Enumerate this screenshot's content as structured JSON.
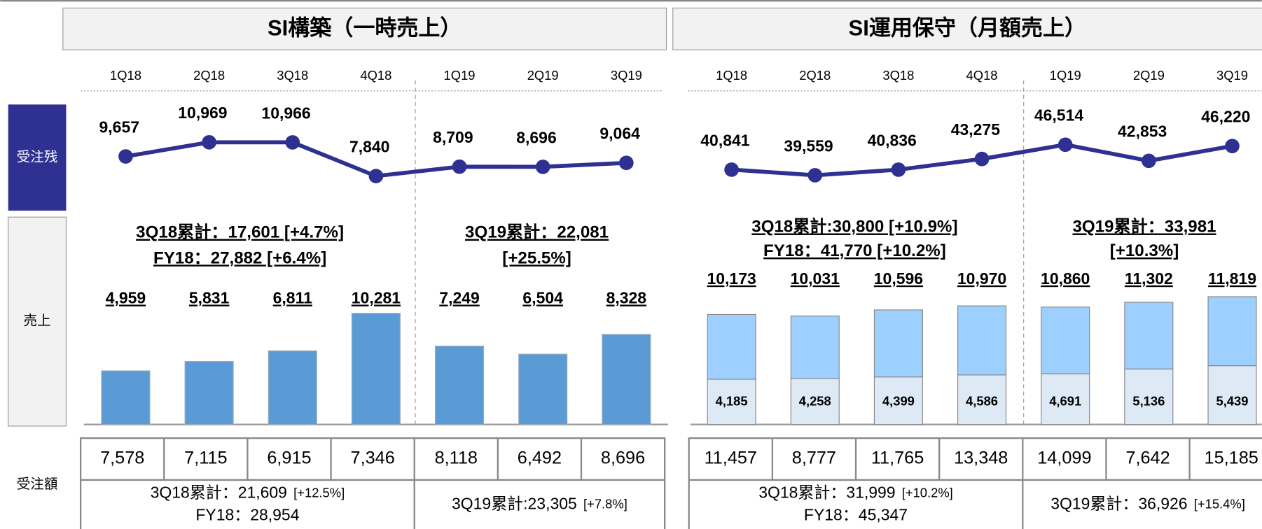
{
  "row_labels": [
    "受注残",
    "売上",
    "受注額"
  ],
  "chart_data": [
    {
      "type": "line",
      "title": "SI構築（一時売上）",
      "categories": [
        "1Q18",
        "2Q18",
        "3Q18",
        "4Q18",
        "1Q19",
        "2Q19",
        "3Q19"
      ],
      "values": [
        9657,
        10969,
        10966,
        7840,
        8709,
        8696,
        9064
      ],
      "value_labels": [
        "9,657",
        "10,969",
        "10,966",
        "7,840",
        "8,709",
        "8,696",
        "9,064"
      ],
      "color": "#2e3192"
    },
    {
      "type": "bar",
      "values": [
        4959,
        5831,
        6811,
        10281,
        7249,
        6504,
        8328
      ],
      "value_labels": [
        "4,959",
        "5,831",
        "6,811",
        "10,281",
        "7,249",
        "6,504",
        "8,328"
      ],
      "color": "#5b9bd5",
      "annotations": [
        [
          "3Q18累計：17,601 [+4.7%]",
          "FY18：27,882 [+6.4%]"
        ],
        [
          "3Q19累計：22,081",
          "[+25.5%]"
        ]
      ]
    },
    {
      "type": "line",
      "title": "SI運用保守（月額売上）",
      "categories": [
        "1Q18",
        "2Q18",
        "3Q18",
        "4Q18",
        "1Q19",
        "2Q19",
        "3Q19"
      ],
      "values": [
        40841,
        39559,
        40836,
        43275,
        46514,
        42853,
        46220
      ],
      "value_labels": [
        "40,841",
        "39,559",
        "40,836",
        "43,275",
        "46,514",
        "42,853",
        "46,220"
      ],
      "color": "#2e3192"
    },
    {
      "type": "stacked",
      "series": [
        {
          "color": "#dde9f5",
          "values": [
            4185,
            4258,
            4399,
            4586,
            4691,
            5136,
            5439
          ],
          "value_labels": [
            "4,185",
            "4,258",
            "4,399",
            "4,586",
            "4,691",
            "5,136",
            "5,439"
          ]
        },
        {
          "color": "#9dcfff",
          "values": [
            5988,
            5773,
            6197,
            6384,
            6169,
            6166,
            6380
          ]
        }
      ],
      "total_labels": [
        "10,173",
        "10,031",
        "10,596",
        "10,970",
        "10,860",
        "11,302",
        "11,819"
      ],
      "annotations": [
        [
          "3Q18累計:30,800 [+10.9%]",
          "FY18：41,770 [+10.2%]"
        ],
        [
          "3Q19累計：33,981",
          "[+10.3%]"
        ]
      ]
    }
  ],
  "tables": [
    {
      "cells": [
        "7,578",
        "7,115",
        "6,915",
        "7,346",
        "8,118",
        "6,492",
        "8,696"
      ],
      "summary_left": [
        {
          "text": "3Q18累計：21,609",
          "note": "[+12.5%]"
        },
        {
          "text": "FY18：28,954"
        }
      ],
      "summary_right": [
        {
          "text": "3Q19累計:23,305",
          "note": "[+7.8%]"
        }
      ]
    },
    {
      "cells": [
        "11,457",
        "8,777",
        "11,765",
        "13,348",
        "14,099",
        "7,642",
        "15,185"
      ],
      "summary_left": [
        {
          "text": "3Q18累計：31,999",
          "note": "[+10.2%]"
        },
        {
          "text": "FY18：45,347"
        }
      ],
      "summary_right": [
        {
          "text": "3Q19累計：36,926",
          "note": "[+15.4%]"
        }
      ]
    }
  ]
}
